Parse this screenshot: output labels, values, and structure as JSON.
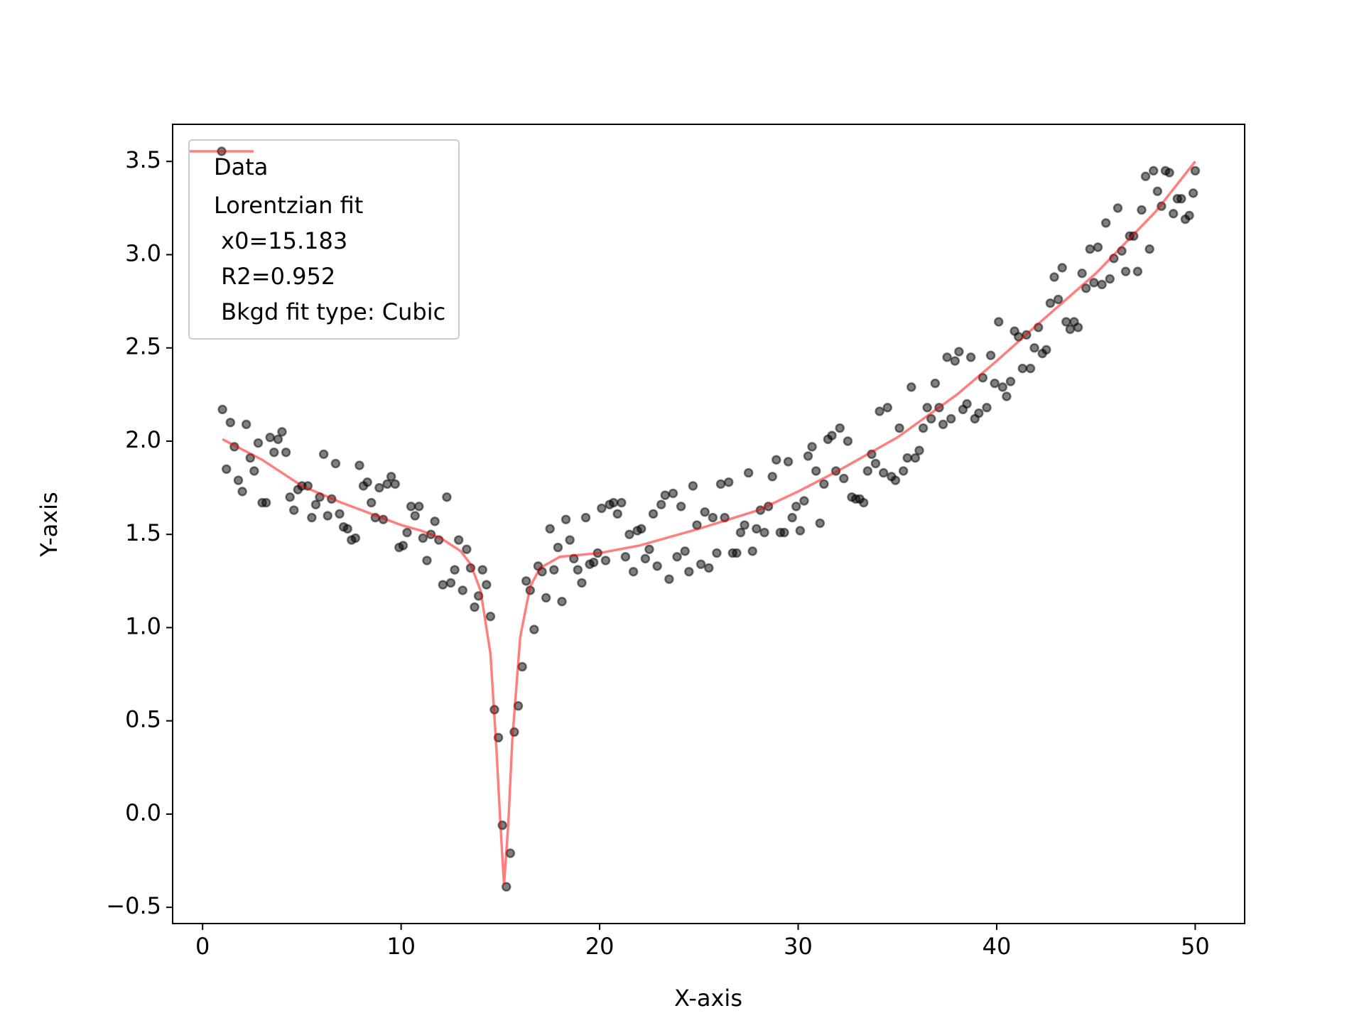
{
  "chart_data": {
    "type": "scatter",
    "xlabel": "X-axis",
    "ylabel": "Y-axis",
    "xlim": [
      -1.51,
      52.49
    ],
    "ylim": [
      -0.587,
      3.699
    ],
    "xticks": [
      0,
      10,
      20,
      30,
      40,
      50
    ],
    "yticks": [
      {
        "value": -0.5,
        "label": "−0.5"
      },
      {
        "value": 0,
        "label": "0.0"
      },
      0.5,
      {
        "value": 1,
        "label": "1.0"
      },
      1.5,
      {
        "value": 2,
        "label": "2.0"
      },
      2.5,
      {
        "value": 3,
        "label": "3.0"
      },
      3.5
    ],
    "legend": "upper left",
    "series": [
      {
        "name": "Data",
        "type": "scatter",
        "color": "#000000",
        "alpha": 0.5,
        "x": [
          1.0,
          1.2,
          1.4,
          1.6,
          1.8,
          2.0,
          2.2,
          2.4,
          2.6,
          2.8,
          3.0,
          3.2,
          3.4,
          3.6,
          3.8,
          4.0,
          4.2,
          4.4,
          4.6,
          4.8,
          5.0,
          5.3,
          5.5,
          5.7,
          5.9,
          6.1,
          6.3,
          6.5,
          6.7,
          6.9,
          7.1,
          7.3,
          7.5,
          7.7,
          7.9,
          8.1,
          8.3,
          8.5,
          8.7,
          8.9,
          9.1,
          9.3,
          9.5,
          9.7,
          9.9,
          10.1,
          10.3,
          10.5,
          10.7,
          10.9,
          11.1,
          11.3,
          11.5,
          11.7,
          11.9,
          12.1,
          12.3,
          12.5,
          12.7,
          12.9,
          13.1,
          13.3,
          13.5,
          13.7,
          13.9,
          14.1,
          14.3,
          14.5,
          14.7,
          14.9,
          15.1,
          15.3,
          15.5,
          15.7,
          15.9,
          16.1,
          16.3,
          16.5,
          16.7,
          16.9,
          17.1,
          17.3,
          17.5,
          17.7,
          17.9,
          18.1,
          18.3,
          18.5,
          18.7,
          18.9,
          19.1,
          19.3,
          19.5,
          19.7,
          19.9,
          20.1,
          20.3,
          20.5,
          20.7,
          20.9,
          21.1,
          21.3,
          21.5,
          21.7,
          21.9,
          22.1,
          22.3,
          22.5,
          22.7,
          22.9,
          23.1,
          23.3,
          23.5,
          23.7,
          23.9,
          24.1,
          24.3,
          24.5,
          24.7,
          24.9,
          25.1,
          25.3,
          25.5,
          25.7,
          25.9,
          26.1,
          26.3,
          26.5,
          26.7,
          26.9,
          27.1,
          27.3,
          27.5,
          27.7,
          27.9,
          28.1,
          28.3,
          28.5,
          28.7,
          28.9,
          29.1,
          29.3,
          29.5,
          29.7,
          29.9,
          30.1,
          30.3,
          30.5,
          30.7,
          30.9,
          31.1,
          31.3,
          31.5,
          31.7,
          31.9,
          32.1,
          32.3,
          32.5,
          32.7,
          32.9,
          33.1,
          33.3,
          33.5,
          33.7,
          33.9,
          34.1,
          34.3,
          34.5,
          34.7,
          34.9,
          35.1,
          35.3,
          35.5,
          35.7,
          35.9,
          36.1,
          36.3,
          36.5,
          36.7,
          36.9,
          37.1,
          37.3,
          37.5,
          37.7,
          37.9,
          38.1,
          38.3,
          38.5,
          38.7,
          38.9,
          39.1,
          39.3,
          39.5,
          39.7,
          39.9,
          40.1,
          40.3,
          40.5,
          40.7,
          40.9,
          41.1,
          41.3,
          41.5,
          41.7,
          41.9,
          42.1,
          42.3,
          42.5,
          42.7,
          42.9,
          43.1,
          43.3,
          43.5,
          43.7,
          43.9,
          44.1,
          44.3,
          44.5,
          44.7,
          44.9,
          45.1,
          45.3,
          45.5,
          45.7,
          45.9,
          46.1,
          46.3,
          46.5,
          46.7,
          46.9,
          47.1,
          47.3,
          47.5,
          47.7,
          47.9,
          48.1,
          48.3,
          48.5,
          48.7,
          48.9,
          49.1,
          49.3,
          49.5,
          49.7,
          49.9,
          50.0
        ],
        "values": [
          2.17,
          1.85,
          2.1,
          1.97,
          1.79,
          1.73,
          2.09,
          1.91,
          1.84,
          1.99,
          1.67,
          1.67,
          2.02,
          1.94,
          2.01,
          2.05,
          1.94,
          1.7,
          1.63,
          1.74,
          1.76,
          1.76,
          1.59,
          1.66,
          1.7,
          1.93,
          1.6,
          1.69,
          1.88,
          1.61,
          1.54,
          1.53,
          1.47,
          1.48,
          1.87,
          1.76,
          1.78,
          1.67,
          1.59,
          1.75,
          1.58,
          1.77,
          1.81,
          1.77,
          1.43,
          1.44,
          1.51,
          1.65,
          1.6,
          1.65,
          1.48,
          1.36,
          1.5,
          1.57,
          1.47,
          1.23,
          1.7,
          1.24,
          1.31,
          1.47,
          1.2,
          1.42,
          1.32,
          1.11,
          1.17,
          1.31,
          1.23,
          1.06,
          0.56,
          0.41,
          -0.06,
          -0.39,
          -0.21,
          0.44,
          0.58,
          0.79,
          1.25,
          1.2,
          0.99,
          1.33,
          1.3,
          1.16,
          1.53,
          1.31,
          1.43,
          1.14,
          1.58,
          1.47,
          1.37,
          1.31,
          1.24,
          1.59,
          1.34,
          1.35,
          1.4,
          1.64,
          1.36,
          1.66,
          1.67,
          1.61,
          1.67,
          1.38,
          1.5,
          1.3,
          1.52,
          1.53,
          1.37,
          1.42,
          1.61,
          1.33,
          1.66,
          1.71,
          1.26,
          1.72,
          1.38,
          1.65,
          1.41,
          1.3,
          1.76,
          1.55,
          1.34,
          1.62,
          1.32,
          1.59,
          1.4,
          1.77,
          1.59,
          1.78,
          1.4,
          1.4,
          1.51,
          1.55,
          1.83,
          1.41,
          1.53,
          1.63,
          1.51,
          1.65,
          1.81,
          1.9,
          1.51,
          1.51,
          1.89,
          1.59,
          1.65,
          1.52,
          1.68,
          1.92,
          1.97,
          1.84,
          1.56,
          1.77,
          2.01,
          2.03,
          1.84,
          2.07,
          1.8,
          2.0,
          1.7,
          1.69,
          1.69,
          1.67,
          1.84,
          1.93,
          1.88,
          2.16,
          1.83,
          2.18,
          1.81,
          1.79,
          2.07,
          1.84,
          1.91,
          2.29,
          1.91,
          1.95,
          2.07,
          2.18,
          2.12,
          2.31,
          2.18,
          2.09,
          2.45,
          2.12,
          2.43,
          2.48,
          2.17,
          2.2,
          2.45,
          2.12,
          2.15,
          2.34,
          2.18,
          2.46,
          2.31,
          2.64,
          2.29,
          2.24,
          2.32,
          2.59,
          2.56,
          2.39,
          2.57,
          2.39,
          2.5,
          2.61,
          2.47,
          2.49,
          2.74,
          2.88,
          2.76,
          2.93,
          2.64,
          2.6,
          2.64,
          2.61,
          2.9,
          2.82,
          3.03,
          2.85,
          3.04,
          2.84,
          3.17,
          2.87,
          2.98,
          3.25,
          3.02,
          2.91,
          3.1,
          3.1,
          2.91,
          3.24,
          3.42,
          3.03,
          3.45,
          3.34,
          3.26,
          3.45,
          3.44,
          3.22,
          3.3,
          3.3,
          3.19,
          3.21,
          3.33,
          3.45
        ]
      },
      {
        "name": "Lorentzian fit\n x0=15.183\n R2=0.952\n Bkgd fit type: Cubic",
        "type": "line",
        "color": "#ff0000",
        "alpha": 0.5,
        "x": [
          1,
          3,
          5,
          7,
          9,
          10,
          11,
          12,
          13,
          13.5,
          14,
          14.5,
          14.8,
          15,
          15.183,
          15.4,
          15.6,
          16,
          16.5,
          17,
          18,
          20,
          22,
          25,
          28,
          30,
          32,
          35,
          38,
          40,
          42,
          45,
          48,
          50
        ],
        "values": [
          2.01,
          1.9,
          1.76,
          1.67,
          1.59,
          1.55,
          1.52,
          1.48,
          1.41,
          1.34,
          1.2,
          0.86,
          0.35,
          -0.05,
          -0.38,
          -0.05,
          0.4,
          0.95,
          1.22,
          1.32,
          1.38,
          1.4,
          1.44,
          1.53,
          1.63,
          1.73,
          1.84,
          2.02,
          2.25,
          2.43,
          2.62,
          2.9,
          3.23,
          3.5
        ]
      }
    ]
  }
}
